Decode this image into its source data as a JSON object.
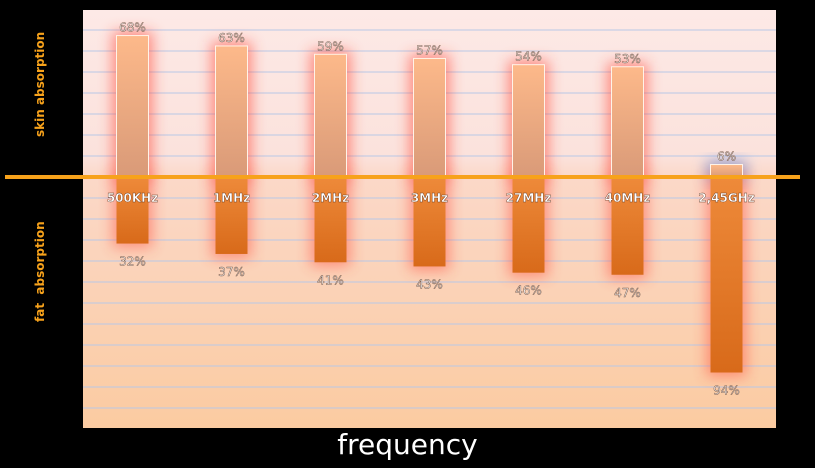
{
  "chart_data": {
    "type": "bar",
    "categories": [
      "500KHz",
      "1MHz",
      "2MHz",
      "3MHz",
      "27MHz",
      "40MHz",
      "2,45GHz"
    ],
    "series": [
      {
        "name": "skin absorption",
        "values": [
          68,
          63,
          59,
          57,
          54,
          53,
          6
        ]
      },
      {
        "name": "fat absorption",
        "values": [
          32,
          37,
          41,
          43,
          46,
          47,
          94
        ]
      }
    ],
    "value_labels": {
      "skin": [
        "68%",
        "63%",
        "59%",
        "57%",
        "54%",
        "53%",
        "6%"
      ],
      "fat": [
        "32%",
        "37%",
        "41%",
        "43%",
        "46%",
        "47%",
        "94%"
      ]
    },
    "xlabel": "frequency",
    "ylabel_top": "skin absorption",
    "ylabel_bottom": "fat  absorption",
    "grid": true,
    "colors": {
      "bar_top": "#f7b98a",
      "bar_bottom": "#e8731e",
      "axis_line": "#f7a21b",
      "glow_red": "#ff3b2a",
      "glow_blue": "#4a7ad8",
      "ylabel": "#f7a21b",
      "background": "#000000"
    }
  }
}
